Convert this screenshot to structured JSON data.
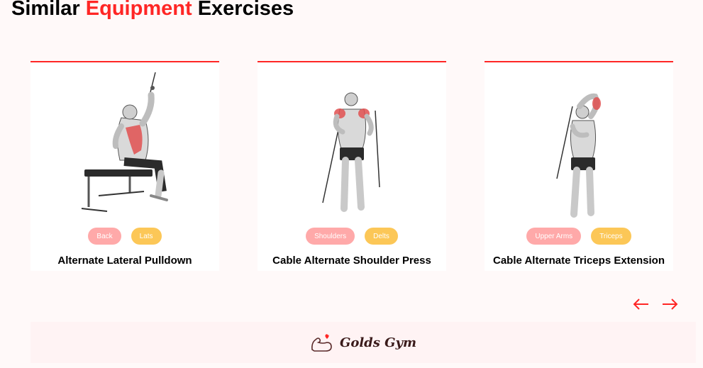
{
  "section": {
    "title_pre": "Similar",
    "title_accent": "Equipment",
    "title_post": "Exercises"
  },
  "cards": [
    {
      "name": "Alternate Lateral Pulldown",
      "tags": [
        "Back",
        "Lats"
      ],
      "image": "seated-cable-pulldown-figure"
    },
    {
      "name": "Cable Alternate Shoulder Press",
      "tags": [
        "Shoulders",
        "Delts"
      ],
      "image": "standing-cable-shoulder-press-figure"
    },
    {
      "name": "Cable Alternate Triceps Extension",
      "tags": [
        "Upper Arms",
        "Triceps"
      ],
      "image": "standing-cable-triceps-extension-figure"
    }
  ],
  "navigation": {
    "prev_icon": "arrow-left-icon",
    "next_icon": "arrow-right-icon"
  },
  "footer": {
    "logo_icon": "flexing-arm-heart-icon",
    "brand": "Golds Gym"
  },
  "colors": {
    "accent": "#ff2625",
    "tag_pink": "#ffa9a9",
    "tag_yellow": "#fcc757",
    "page_bg": "#fff9f9",
    "footer_bg": "#fff3f4"
  }
}
